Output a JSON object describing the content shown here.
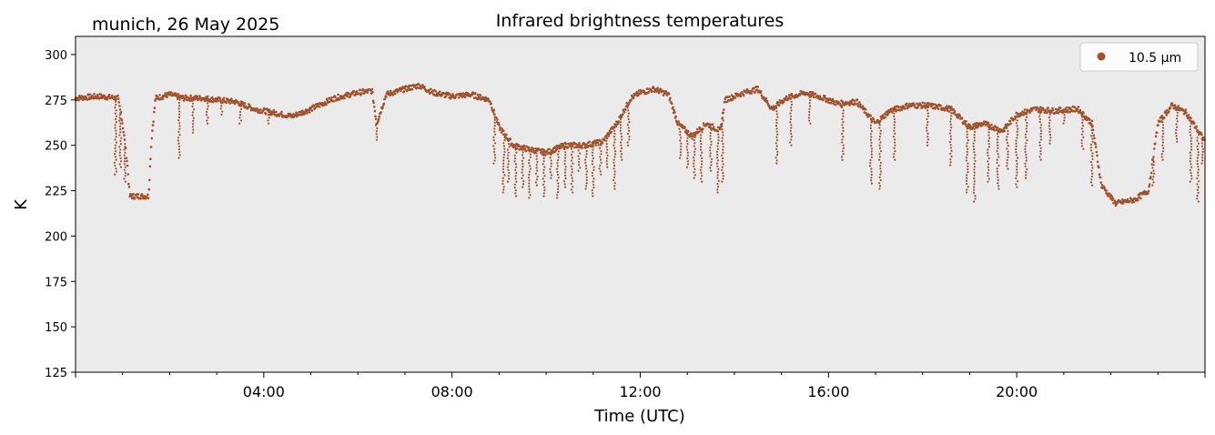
{
  "header": {
    "location_date": "munich, 26 May 2025"
  },
  "chart_data": {
    "type": "scatter",
    "title": "Infrared brightness temperatures",
    "xlabel": "Time (UTC)",
    "ylabel": "K",
    "x_unit": "hours UTC",
    "xlim": [
      0,
      24
    ],
    "ylim": [
      125,
      310
    ],
    "x_ticks": [
      4,
      8,
      12,
      16,
      20
    ],
    "x_tick_labels": [
      "04:00",
      "08:00",
      "12:00",
      "16:00",
      "20:00"
    ],
    "y_ticks": [
      125,
      150,
      175,
      200,
      225,
      250,
      275,
      300
    ],
    "y_tick_labels": [
      "125",
      "150",
      "175",
      "200",
      "225",
      "250",
      "275",
      "300"
    ],
    "grid": false,
    "background": "#ebebeb",
    "legend_position": "top-right",
    "series": [
      {
        "name": "10.5 µm",
        "color": "#a0522d",
        "baseline": [
          [
            0.0,
            276
          ],
          [
            0.5,
            277
          ],
          [
            0.9,
            276
          ],
          [
            1.0,
            262
          ],
          [
            1.1,
            240
          ],
          [
            1.15,
            222
          ],
          [
            1.4,
            222
          ],
          [
            1.55,
            222
          ],
          [
            1.62,
            255
          ],
          [
            1.7,
            276
          ],
          [
            2.0,
            278
          ],
          [
            2.3,
            276
          ],
          [
            2.7,
            276
          ],
          [
            3.0,
            275
          ],
          [
            3.4,
            274
          ],
          [
            3.8,
            270
          ],
          [
            4.2,
            268
          ],
          [
            4.6,
            266
          ],
          [
            5.0,
            270
          ],
          [
            5.5,
            276
          ],
          [
            6.0,
            279
          ],
          [
            6.3,
            280
          ],
          [
            6.4,
            262
          ],
          [
            6.6,
            278
          ],
          [
            7.0,
            281
          ],
          [
            7.3,
            283
          ],
          [
            7.6,
            279
          ],
          [
            8.0,
            277
          ],
          [
            8.4,
            278
          ],
          [
            8.8,
            275
          ],
          [
            9.0,
            260
          ],
          [
            9.3,
            250
          ],
          [
            9.6,
            248
          ],
          [
            10.0,
            246
          ],
          [
            10.4,
            250
          ],
          [
            10.8,
            250
          ],
          [
            11.2,
            252
          ],
          [
            11.5,
            262
          ],
          [
            11.8,
            276
          ],
          [
            12.0,
            279
          ],
          [
            12.3,
            281
          ],
          [
            12.6,
            278
          ],
          [
            12.8,
            262
          ],
          [
            13.1,
            255
          ],
          [
            13.4,
            262
          ],
          [
            13.7,
            258
          ],
          [
            13.8,
            275
          ],
          [
            14.2,
            279
          ],
          [
            14.5,
            281
          ],
          [
            14.8,
            270
          ],
          [
            15.1,
            276
          ],
          [
            15.5,
            279
          ],
          [
            15.9,
            276
          ],
          [
            16.2,
            273
          ],
          [
            16.6,
            274
          ],
          [
            17.0,
            262
          ],
          [
            17.3,
            269
          ],
          [
            17.7,
            272
          ],
          [
            18.1,
            272
          ],
          [
            18.6,
            270
          ],
          [
            19.0,
            260
          ],
          [
            19.3,
            262
          ],
          [
            19.7,
            258
          ],
          [
            20.0,
            267
          ],
          [
            20.4,
            270
          ],
          [
            20.8,
            269
          ],
          [
            21.3,
            270
          ],
          [
            21.6,
            262
          ],
          [
            21.8,
            228
          ],
          [
            22.1,
            218
          ],
          [
            22.5,
            220
          ],
          [
            22.8,
            225
          ],
          [
            23.0,
            262
          ],
          [
            23.3,
            272
          ],
          [
            23.6,
            268
          ],
          [
            24.0,
            252
          ]
        ],
        "dips": [
          [
            0.85,
            234
          ],
          [
            0.95,
            238
          ],
          [
            1.05,
            230
          ],
          [
            1.25,
            226
          ],
          [
            1.45,
            224
          ],
          [
            2.2,
            243
          ],
          [
            2.5,
            257
          ],
          [
            2.8,
            262
          ],
          [
            3.1,
            267
          ],
          [
            3.5,
            262
          ],
          [
            4.1,
            262
          ],
          [
            6.4,
            253
          ],
          [
            8.9,
            240
          ],
          [
            9.1,
            224
          ],
          [
            9.2,
            230
          ],
          [
            9.35,
            222
          ],
          [
            9.5,
            227
          ],
          [
            9.65,
            221
          ],
          [
            9.8,
            228
          ],
          [
            9.95,
            222
          ],
          [
            10.1,
            232
          ],
          [
            10.25,
            221
          ],
          [
            10.4,
            227
          ],
          [
            10.55,
            224
          ],
          [
            10.7,
            236
          ],
          [
            10.85,
            226
          ],
          [
            11.0,
            222
          ],
          [
            11.15,
            234
          ],
          [
            11.3,
            238
          ],
          [
            11.45,
            226
          ],
          [
            11.6,
            242
          ],
          [
            11.75,
            250
          ],
          [
            12.85,
            243
          ],
          [
            13.0,
            238
          ],
          [
            13.15,
            232
          ],
          [
            13.3,
            230
          ],
          [
            13.5,
            236
          ],
          [
            13.65,
            224
          ],
          [
            13.75,
            230
          ],
          [
            14.9,
            240
          ],
          [
            15.2,
            250
          ],
          [
            15.6,
            262
          ],
          [
            16.3,
            242
          ],
          [
            16.9,
            229
          ],
          [
            17.1,
            226
          ],
          [
            17.4,
            242
          ],
          [
            18.1,
            250
          ],
          [
            18.6,
            239
          ],
          [
            18.95,
            224
          ],
          [
            19.1,
            219
          ],
          [
            19.4,
            230
          ],
          [
            19.6,
            226
          ],
          [
            19.8,
            237
          ],
          [
            20.0,
            227
          ],
          [
            20.2,
            232
          ],
          [
            20.5,
            242
          ],
          [
            20.7,
            251
          ],
          [
            21.0,
            262
          ],
          [
            21.4,
            248
          ],
          [
            21.6,
            228
          ],
          [
            22.3,
            226
          ],
          [
            22.6,
            230
          ],
          [
            22.9,
            228
          ],
          [
            23.1,
            242
          ],
          [
            23.4,
            252
          ],
          [
            23.7,
            230
          ],
          [
            23.85,
            219
          ],
          [
            23.95,
            240
          ]
        ]
      }
    ]
  }
}
